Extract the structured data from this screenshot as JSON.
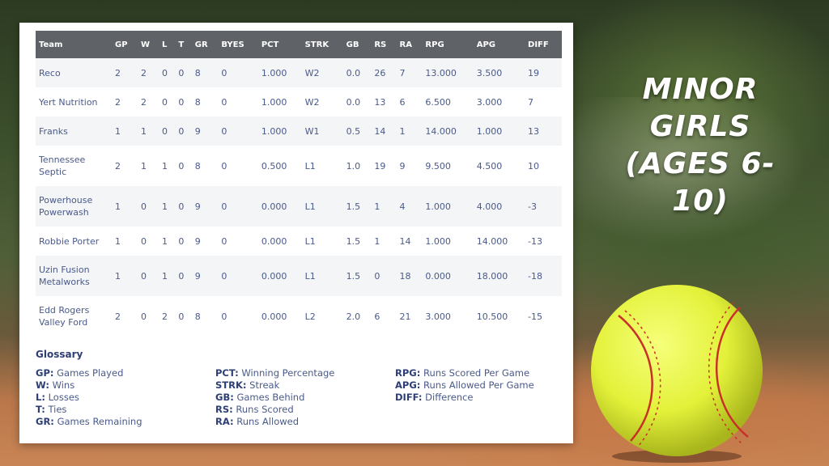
{
  "heading": {
    "line1": "MINOR GIRLS",
    "line2": "(AGES 6-10)"
  },
  "table": {
    "columns": [
      "Team",
      "GP",
      "W",
      "L",
      "T",
      "GR",
      "BYES",
      "PCT",
      "STRK",
      "GB",
      "RS",
      "RA",
      "RPG",
      "APG",
      "DIFF"
    ],
    "rows": [
      {
        "team": [
          "Reco"
        ],
        "gp": "2",
        "w": "2",
        "l": "0",
        "t": "0",
        "gr": "8",
        "byes": "0",
        "pct": "1.000",
        "strk": "W2",
        "gb": "0.0",
        "rs": "26",
        "ra": "7",
        "rpg": "13.000",
        "apg": "3.500",
        "diff": "19"
      },
      {
        "team": [
          "Yert Nutrition"
        ],
        "gp": "2",
        "w": "2",
        "l": "0",
        "t": "0",
        "gr": "8",
        "byes": "0",
        "pct": "1.000",
        "strk": "W2",
        "gb": "0.0",
        "rs": "13",
        "ra": "6",
        "rpg": "6.500",
        "apg": "3.000",
        "diff": "7"
      },
      {
        "team": [
          "Franks"
        ],
        "gp": "1",
        "w": "1",
        "l": "0",
        "t": "0",
        "gr": "9",
        "byes": "0",
        "pct": "1.000",
        "strk": "W1",
        "gb": "0.5",
        "rs": "14",
        "ra": "1",
        "rpg": "14.000",
        "apg": "1.000",
        "diff": "13"
      },
      {
        "team": [
          "Tennessee",
          "Septic"
        ],
        "gp": "2",
        "w": "1",
        "l": "1",
        "t": "0",
        "gr": "8",
        "byes": "0",
        "pct": "0.500",
        "strk": "L1",
        "gb": "1.0",
        "rs": "19",
        "ra": "9",
        "rpg": "9.500",
        "apg": "4.500",
        "diff": "10"
      },
      {
        "team": [
          "Powerhouse",
          "Powerwash"
        ],
        "gp": "1",
        "w": "0",
        "l": "1",
        "t": "0",
        "gr": "9",
        "byes": "0",
        "pct": "0.000",
        "strk": "L1",
        "gb": "1.5",
        "rs": "1",
        "ra": "4",
        "rpg": "1.000",
        "apg": "4.000",
        "diff": "-3"
      },
      {
        "team": [
          "Robbie Porter"
        ],
        "gp": "1",
        "w": "0",
        "l": "1",
        "t": "0",
        "gr": "9",
        "byes": "0",
        "pct": "0.000",
        "strk": "L1",
        "gb": "1.5",
        "rs": "1",
        "ra": "14",
        "rpg": "1.000",
        "apg": "14.000",
        "diff": "-13"
      },
      {
        "team": [
          "Uzin Fusion",
          "Metalworks"
        ],
        "gp": "1",
        "w": "0",
        "l": "1",
        "t": "0",
        "gr": "9",
        "byes": "0",
        "pct": "0.000",
        "strk": "L1",
        "gb": "1.5",
        "rs": "0",
        "ra": "18",
        "rpg": "0.000",
        "apg": "18.000",
        "diff": "-18"
      },
      {
        "team": [
          "Edd Rogers",
          "Valley Ford"
        ],
        "gp": "2",
        "w": "0",
        "l": "2",
        "t": "0",
        "gr": "8",
        "byes": "0",
        "pct": "0.000",
        "strk": "L2",
        "gb": "2.0",
        "rs": "6",
        "ra": "21",
        "rpg": "3.000",
        "apg": "10.500",
        "diff": "-15"
      }
    ]
  },
  "glossary": {
    "title": "Glossary",
    "columns": [
      [
        {
          "term": "GP:",
          "def": "Games Played"
        },
        {
          "term": "W:",
          "def": "Wins"
        },
        {
          "term": "L:",
          "def": "Losses"
        },
        {
          "term": "T:",
          "def": "Ties"
        },
        {
          "term": "GR:",
          "def": "Games Remaining"
        }
      ],
      [
        {
          "term": "PCT:",
          "def": "Winning Percentage"
        },
        {
          "term": "STRK:",
          "def": "Streak"
        },
        {
          "term": "GB:",
          "def": "Games Behind"
        },
        {
          "term": "RS:",
          "def": "Runs Scored"
        },
        {
          "term": "RA:",
          "def": "Runs Allowed"
        }
      ],
      [
        {
          "term": "RPG:",
          "def": "Runs Scored Per Game"
        },
        {
          "term": "APG:",
          "def": "Runs Allowed Per Game"
        },
        {
          "term": "DIFF:",
          "def": "Difference"
        }
      ]
    ]
  },
  "colors": {
    "header_bg": "#5f6368",
    "text": "#4a5a8a",
    "term": "#2d3e75",
    "ball": "#e3f13a",
    "stitch": "#c8302a"
  },
  "icons": {
    "ball": "softball-icon"
  }
}
